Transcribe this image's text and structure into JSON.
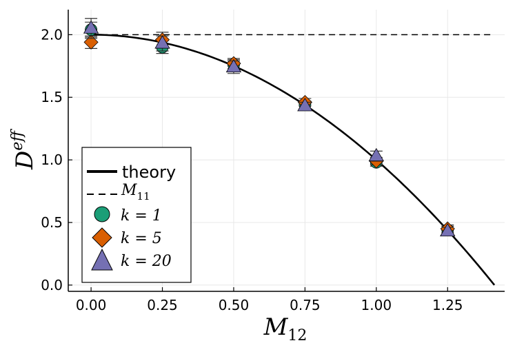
{
  "chart_data": {
    "type": "scatter",
    "xlabel": "M",
    "xlabel_sub": "12",
    "ylabel": "D",
    "ylabel_sup": "eff",
    "xlim": [
      -0.08,
      1.45
    ],
    "ylim": [
      -0.05,
      2.2
    ],
    "x_ticks": [
      0.0,
      0.25,
      0.5,
      0.75,
      1.0,
      1.25
    ],
    "x_tick_labels": [
      "0.00",
      "0.25",
      "0.50",
      "0.75",
      "1.00",
      "1.25"
    ],
    "y_ticks": [
      0.0,
      0.5,
      1.0,
      1.5,
      2.0
    ],
    "y_tick_labels": [
      "0.0",
      "0.5",
      "1.0",
      "1.5",
      "2.0"
    ],
    "grid": true,
    "legend_position": "bottom-left",
    "theory": {
      "name": "theory",
      "formula": "2 - M12^2",
      "x_range": [
        0.0,
        1.414
      ]
    },
    "reference": {
      "name": "M",
      "name_sub": "11",
      "value": 2.0,
      "x_range": [
        0.0,
        1.4
      ]
    },
    "series": [
      {
        "name": "k = 1",
        "marker": "circle",
        "color": "#1b9e77",
        "x": [
          0.0,
          0.25,
          0.5,
          0.75,
          1.0,
          1.25
        ],
        "y": [
          2.04,
          1.9,
          1.76,
          1.44,
          0.98,
          0.44
        ],
        "err": [
          0.06,
          0.05,
          0.04,
          0.03,
          0.03,
          0.03
        ]
      },
      {
        "name": "k = 5",
        "marker": "diamond",
        "color": "#d95f02",
        "x": [
          0.0,
          0.25,
          0.5,
          0.75,
          1.0,
          1.25
        ],
        "y": [
          1.94,
          1.96,
          1.77,
          1.46,
          0.99,
          0.45
        ],
        "err": [
          0.05,
          0.06,
          0.04,
          0.03,
          0.03,
          0.03
        ]
      },
      {
        "name": "k = 20",
        "marker": "triangle",
        "color": "#7570b3",
        "x": [
          0.0,
          0.25,
          0.5,
          0.75,
          1.0,
          1.25
        ],
        "y": [
          2.05,
          1.93,
          1.74,
          1.43,
          1.03,
          0.43
        ],
        "err": [
          0.08,
          0.06,
          0.05,
          0.03,
          0.04,
          0.03
        ]
      }
    ]
  }
}
